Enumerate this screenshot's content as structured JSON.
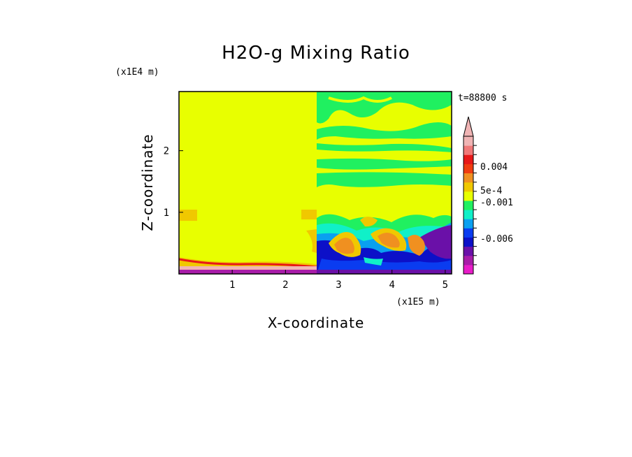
{
  "chart_data": {
    "type": "heatmap",
    "title": "H2O-g Mixing Ratio",
    "xlabel": "X-coordinate",
    "ylabel": "Z-coordinate",
    "x_unit": "(x1E5 m)",
    "y_unit": "(x1E4 m)",
    "time_label": "t=88800 s",
    "x_ticks": [
      "1",
      "2",
      "3",
      "4",
      "5"
    ],
    "y_ticks": [
      "1",
      "2"
    ],
    "xlim": [
      0,
      5.12
    ],
    "ylim": [
      0,
      2.96
    ],
    "colorbar": {
      "colors": [
        "#e81cc8",
        "#a81ca8",
        "#6a10a8",
        "#0c10c8",
        "#0a3cf0",
        "#0aa0f0",
        "#10f0c8",
        "#20f060",
        "#e8ff00",
        "#f0c800",
        "#f09020",
        "#f03c10",
        "#e81818",
        "#f07878",
        "#f0b4b4"
      ],
      "labels": [
        "0.004",
        "5e-4",
        "-0.001",
        "-0.006"
      ],
      "extend": "max"
    },
    "regions": [
      {
        "name": "left-domain",
        "x": [
          0,
          2.57
        ],
        "z": [
          0,
          2.96
        ],
        "dominant_value": "yellow band"
      },
      {
        "name": "right-domain",
        "x": [
          2.57,
          5.12
        ],
        "z": [
          0,
          2.96
        ],
        "dominant_value": "mixed yellow/green/blue"
      }
    ]
  }
}
